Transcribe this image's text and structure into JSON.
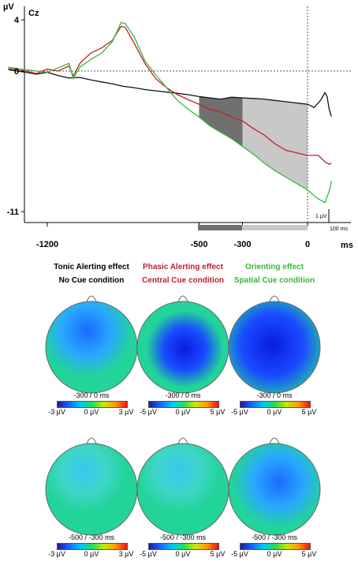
{
  "chart_data": [
    {
      "type": "line",
      "title": "Cz",
      "ylabel": "µV",
      "xlabel": "ms",
      "x_ticks": [
        -1200,
        -500,
        -300,
        0
      ],
      "y_ticks": [
        4,
        0,
        -11
      ],
      "xlim": [
        -1380,
        110
      ],
      "ylim": [
        -11.5,
        5
      ],
      "scale_bar": {
        "amplitude_label": "1 µV",
        "time_label": "100 ms"
      },
      "series": [
        {
          "color": "#111111",
          "points": [
            [
              -1380,
              0.1
            ],
            [
              -1300,
              -0.1
            ],
            [
              -1250,
              -0.25
            ],
            [
              -1200,
              -0.1
            ],
            [
              -1150,
              -0.35
            ],
            [
              -1100,
              -0.55
            ],
            [
              -1050,
              -0.5
            ],
            [
              -1000,
              -0.7
            ],
            [
              -950,
              -0.85
            ],
            [
              -900,
              -1.0
            ],
            [
              -850,
              -1.2
            ],
            [
              -800,
              -1.3
            ],
            [
              -750,
              -1.45
            ],
            [
              -700,
              -1.55
            ],
            [
              -650,
              -1.65
            ],
            [
              -600,
              -1.75
            ],
            [
              -550,
              -1.85
            ],
            [
              -500,
              -2.0
            ],
            [
              -450,
              -2.1
            ],
            [
              -400,
              -2.2
            ],
            [
              -350,
              -2.05
            ],
            [
              -300,
              -2.1
            ],
            [
              -250,
              -2.15
            ],
            [
              -200,
              -2.2
            ],
            [
              -150,
              -2.3
            ],
            [
              -100,
              -2.4
            ],
            [
              -50,
              -2.5
            ],
            [
              0,
              -2.6
            ],
            [
              30,
              -2.85
            ],
            [
              60,
              -2.3
            ],
            [
              80,
              -1.7
            ],
            [
              90,
              -2.0
            ],
            [
              100,
              -3.0
            ],
            [
              110,
              -3.55
            ]
          ]
        },
        {
          "color": "#c0202a",
          "points": [
            [
              -1380,
              0.2
            ],
            [
              -1300,
              0.0
            ],
            [
              -1250,
              -0.2
            ],
            [
              -1200,
              0.15
            ],
            [
              -1150,
              0.0
            ],
            [
              -1100,
              0.4
            ],
            [
              -1080,
              -0.4
            ],
            [
              -1050,
              0.6
            ],
            [
              -1000,
              1.4
            ],
            [
              -950,
              1.8
            ],
            [
              -900,
              2.4
            ],
            [
              -860,
              3.5
            ],
            [
              -840,
              3.4
            ],
            [
              -800,
              2.2
            ],
            [
              -750,
              0.6
            ],
            [
              -700,
              -0.6
            ],
            [
              -650,
              -1.3
            ],
            [
              -600,
              -1.85
            ],
            [
              -550,
              -2.25
            ],
            [
              -500,
              -2.6
            ],
            [
              -450,
              -3.0
            ],
            [
              -400,
              -3.2
            ],
            [
              -350,
              -3.6
            ],
            [
              -300,
              -3.9
            ],
            [
              -250,
              -4.5
            ],
            [
              -200,
              -5.0
            ],
            [
              -150,
              -5.7
            ],
            [
              -100,
              -6.2
            ],
            [
              -50,
              -6.4
            ],
            [
              0,
              -6.6
            ],
            [
              50,
              -6.6
            ],
            [
              80,
              -7.1
            ],
            [
              100,
              -7.3
            ],
            [
              110,
              -7.2
            ]
          ]
        },
        {
          "color": "#3db53d",
          "points": [
            [
              -1380,
              0.3
            ],
            [
              -1300,
              0.1
            ],
            [
              -1250,
              0.0
            ],
            [
              -1200,
              -0.1
            ],
            [
              -1150,
              0.25
            ],
            [
              -1100,
              0.6
            ],
            [
              -1080,
              -0.6
            ],
            [
              -1050,
              0.3
            ],
            [
              -1000,
              0.9
            ],
            [
              -950,
              1.4
            ],
            [
              -900,
              2.3
            ],
            [
              -860,
              3.8
            ],
            [
              -840,
              3.7
            ],
            [
              -800,
              2.7
            ],
            [
              -750,
              0.8
            ],
            [
              -700,
              -0.3
            ],
            [
              -650,
              -1.3
            ],
            [
              -600,
              -2.3
            ],
            [
              -550,
              -3.0
            ],
            [
              -500,
              -3.6
            ],
            [
              -450,
              -4.3
            ],
            [
              -400,
              -4.8
            ],
            [
              -350,
              -5.3
            ],
            [
              -300,
              -5.9
            ],
            [
              -250,
              -6.5
            ],
            [
              -200,
              -7.2
            ],
            [
              -150,
              -7.8
            ],
            [
              -100,
              -8.3
            ],
            [
              -50,
              -8.8
            ],
            [
              0,
              -9.3
            ],
            [
              40,
              -9.9
            ],
            [
              80,
              -10.3
            ],
            [
              100,
              -9.4
            ],
            [
              110,
              -8.6
            ]
          ]
        }
      ],
      "shaded_intervals": [
        {
          "x_range": [
            -500,
            -300
          ],
          "color": "#707070"
        },
        {
          "x_range": [
            -300,
            0
          ],
          "color": "#c8c8c8"
        }
      ]
    },
    {
      "type": "heatmap",
      "columns": [
        {
          "title": "Tonic Alerting effect",
          "subtitle": "No Cue condition",
          "color": "#000000"
        },
        {
          "title": "Phasic Alerting effect",
          "subtitle": "Central Cue condition",
          "color": "#c0202a"
        },
        {
          "title": "Orienting effect",
          "subtitle": "Spatial Cue condition",
          "color": "#3db53d"
        }
      ],
      "rows": [
        {
          "window": "-300 / 0 ms",
          "maps": [
            {
              "ticks": [
                "-3 µV",
                "0 µV",
                "3 µV"
              ],
              "focus": [
                0.45,
                0.32
              ],
              "radius": 0.5,
              "strength": 0.55
            },
            {
              "ticks": [
                "-5 µV",
                "0 µV",
                "5 µV"
              ],
              "focus": [
                0.52,
                0.52
              ],
              "radius": 0.42,
              "strength": 1.0
            },
            {
              "ticks": [
                "-5 µV",
                "0 µV",
                "5 µV"
              ],
              "focus": [
                0.48,
                0.48
              ],
              "radius": 0.62,
              "strength": 1.0
            }
          ]
        },
        {
          "window": "-500 / -300 ms",
          "maps": [
            {
              "ticks": [
                "-3 µV",
                "0 µV",
                "3 µV"
              ],
              "focus": [
                0.42,
                0.3
              ],
              "radius": 0.45,
              "strength": 0.3
            },
            {
              "ticks": [
                "-5 µV",
                "0 µV",
                "5 µV"
              ],
              "focus": [
                0.45,
                0.3
              ],
              "radius": 0.45,
              "strength": 0.3
            },
            {
              "ticks": [
                "-5 µV",
                "0 µV",
                "5 µV"
              ],
              "focus": [
                0.55,
                0.42
              ],
              "radius": 0.5,
              "strength": 0.75
            }
          ]
        }
      ]
    }
  ]
}
